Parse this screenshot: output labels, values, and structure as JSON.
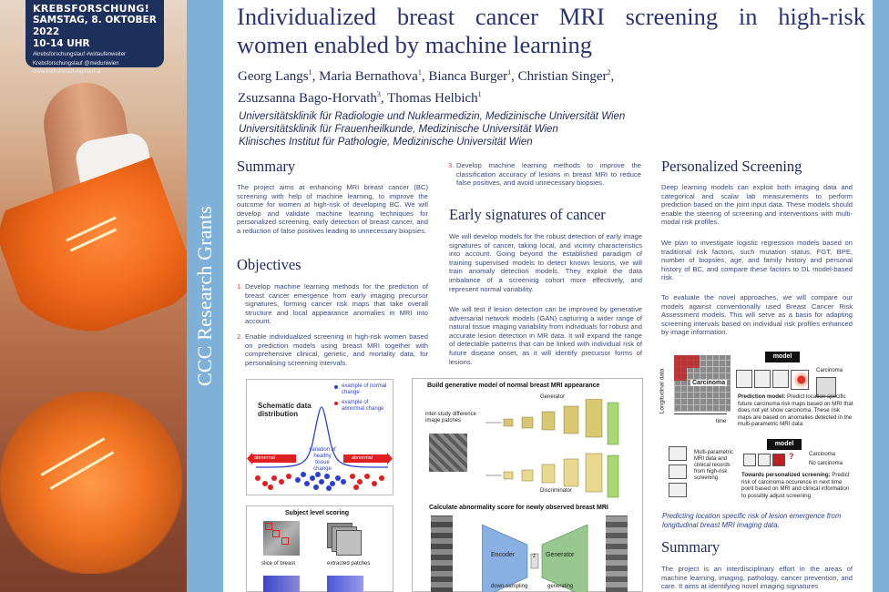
{
  "badge": {
    "line1": "KREBSFORSCHUNG!",
    "line2": "SAMSTAG, 8. OKTOBER 2022",
    "line3": "10-14 UHR",
    "line4": "#krebsforschungslauf  #wirlaufenweiter",
    "line5": "Krebsforschungslauf  @meduniwien",
    "line6": "www.krebsforschungslauf.at"
  },
  "side_label": "CCC Research Grants",
  "header": {
    "title_line1": "Individualized breast cancer MRI screening in high-risk",
    "title_line2": "women enabled by machine learning",
    "authors_line1": [
      {
        "name": "Georg Langs",
        "sup": "1"
      },
      {
        "name": "Maria Bernathova",
        "sup": "1"
      },
      {
        "name": "Bianca Burger",
        "sup": "1"
      },
      {
        "name": "Christian Singer",
        "sup": "2"
      }
    ],
    "authors_line2": [
      {
        "name": "Zsuzsanna Bago-Horvath",
        "sup": "3"
      },
      {
        "name": "Thomas Helbich",
        "sup": "1"
      }
    ],
    "affiliations": [
      "Universitätsklinik für Radiologie und Nuklearmedizin, Medizinische Universität Wien",
      "Universitätsklinik für Frauenheilkunde, Medizinische Universität Wien",
      "Klinisches Institut für Pathologie, Medizinische Universität Wien"
    ]
  },
  "col1": {
    "summary_heading": "Summary",
    "summary_text": "The project aims at enhancing MRI breast cancer (BC) screening with help of machine learning, to improve the outcome for women at high-risk of developing BC. We will develop and validate machine learning techniques for personalized screening, early detection of breast cancer, and a reduction of false positives leading to unnecessary biopsies.",
    "objectives_heading": "Objectives",
    "objectives": [
      {
        "num": "1.",
        "text": "Develop machine learning methods for the prediction of breast cancer emergence from early imaging precursor signatures, forming cancer risk maps that take overall structure and local appearance anomalies in MRI into account."
      },
      {
        "num": "2.",
        "text": "Enable individualized screening in high-risk women based on prediction models using breast MRI together with comprehensive clinical, genetic, and mortality data, for personalising screening intervals."
      }
    ]
  },
  "col2": {
    "objective3_num": "3.",
    "objective3_text": "Develop machine learning methods to improve the classification accuracy of lesions in breast MRI to reduce false positives, and avoid unnecessary biopsies.",
    "early_heading": "Early signatures of cancer",
    "early_text1": "We will develop models for the robust detection of early image signatures of cancer, taking local, and vicinity characteristics into account. Going beyond the established paradigm of training supervised models to detect known lesions, we will train anomaly detection models. They exploit the data imbalance of a screening cohort more effectively, and represent normal variability.",
    "early_text2": "We will test if lesion detection can be improved by generative adversarial network models (GAN) capturing a wider range of natural tissue imaging variability from individuals for robust and accurate lesion detection in MR data. It will expand the range of detectable patterns that can be linked with individual risk of future disease onset, as it will identify precursor forms of lesions."
  },
  "col3": {
    "personal_heading": "Personalized Screening",
    "personal_text1": "Deep learning models can exploit both imaging data and categorical and scalar lab measurements to perform prediction based on the joint input data. These models should enable the steering of screening and interventions with multi-modal risk profiles.",
    "personal_text2": "We plan to investigate logistic regression models based on traditional risk factors, such mutation status, FGT, BPE, number of biopsies, age, and family history and personal history of BC, and compare these factors to DL model-based risk.",
    "personal_text3": "To evaluate the novel approaches, we will compare our models against conventionally used Breast Cancer Risk Assessment models. This will serve as a basis for adapting screening intervals based on individual risk profiles enhanced by image information.",
    "caption": "Predicting location specific risk of lesion emergence from longitudinal breast MRI imaging data.",
    "summary2_heading": "Summary",
    "summary2_text": "The project is an interdisciplinary effort in the areas of machine learning, imaging, pathology, cancer prevention, and care. It aims at identifying novel imaging signatures"
  },
  "fig_distribution": {
    "title": "Schematic data distribution",
    "legend_normal": "example of normal change",
    "legend_abnormal": "example of abnormal change",
    "curve_label": "variation of healthy tissue change",
    "arrow_left": "abnormal",
    "arrow_right": "abnormal"
  },
  "fig_scoring": {
    "title": "Subject level scoring",
    "slice_label": "slice of breast",
    "patches_label": "extracted patches"
  },
  "fig_gan": {
    "title": "Build generative model of normal breast MRI appearance",
    "patches_label": "inter-study difference image patches",
    "generator_label": "Generator",
    "discriminator_label": "Discriminator",
    "calc_title": "Calculate abnormality score for newly observed breast MRI",
    "encoder_label": "Encoder",
    "z_label": "z",
    "generator2_label": "Generator",
    "down_label": "down-sampling",
    "gen_label": "generating"
  },
  "fig_longitudinal": {
    "axis_label": "Longitudinal data",
    "time_label": "time",
    "carcinoma_label": "Carcinoma",
    "model_label": "model",
    "carcinoma_right": "Carcinoma",
    "prediction_title": "Prediction model:",
    "prediction_text": "Predict location specific future carcinoma risk maps based on MRI that does not yet show carcinoma. These risk maps are based on anomalies detected in the multi-parametric MRI data",
    "multi_label": "Multi-parametric MRI data and clinical records from high-risk screening",
    "model2_label": "model",
    "carcinoma_yes": "Carcinoma",
    "carcinoma_no": "No carcinoma",
    "towards_title": "Towards personalized screening:",
    "towards_text": "Predict risk of carcinoma occurence in next time point based on MRI and clinical information to possibly adjust screening",
    "question": "?"
  },
  "colors": {
    "title": "#2a3472",
    "band": "#7fb0d8",
    "text": "#3a4a78",
    "normal_dot": "#2b3fd0",
    "abnormal_dot": "#e02020"
  }
}
